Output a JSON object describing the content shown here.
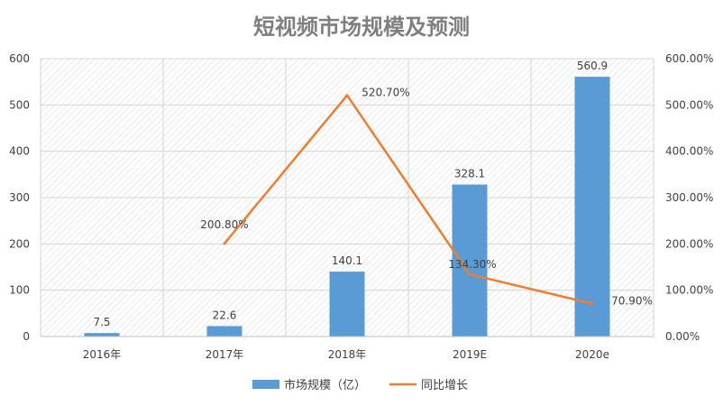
{
  "chart_data": {
    "type": "bar",
    "title": "短视频市场规模及预测",
    "categories": [
      "2016年",
      "2017年",
      "2018年",
      "2019E",
      "2020e"
    ],
    "series": [
      {
        "name": "市场规模（亿）",
        "type": "bar",
        "axis": "left",
        "color": "#5b9bd5",
        "values": [
          7.5,
          22.6,
          140.1,
          328.1,
          560.9
        ],
        "labels": [
          "7.5",
          "22.6",
          "140.1",
          "328.1",
          "560.9"
        ]
      },
      {
        "name": "同比增长",
        "type": "line",
        "axis": "right",
        "color": "#ed7d31",
        "values": [
          null,
          200.8,
          520.7,
          134.3,
          70.9
        ],
        "labels": [
          "",
          "200.80%",
          "520.70%",
          "134.30%",
          "70.90%"
        ]
      }
    ],
    "y_left": {
      "min": 0,
      "max": 600,
      "ticks": [
        "0",
        "100",
        "200",
        "300",
        "400",
        "500",
        "600"
      ]
    },
    "y_right": {
      "min": 0,
      "max": 600,
      "ticks": [
        "0.00%",
        "100.00%",
        "200.00%",
        "300.00%",
        "400.00%",
        "500.00%",
        "600.00%"
      ]
    },
    "xlabel": "",
    "ylabel": "",
    "legend_position": "bottom",
    "grid": true
  }
}
